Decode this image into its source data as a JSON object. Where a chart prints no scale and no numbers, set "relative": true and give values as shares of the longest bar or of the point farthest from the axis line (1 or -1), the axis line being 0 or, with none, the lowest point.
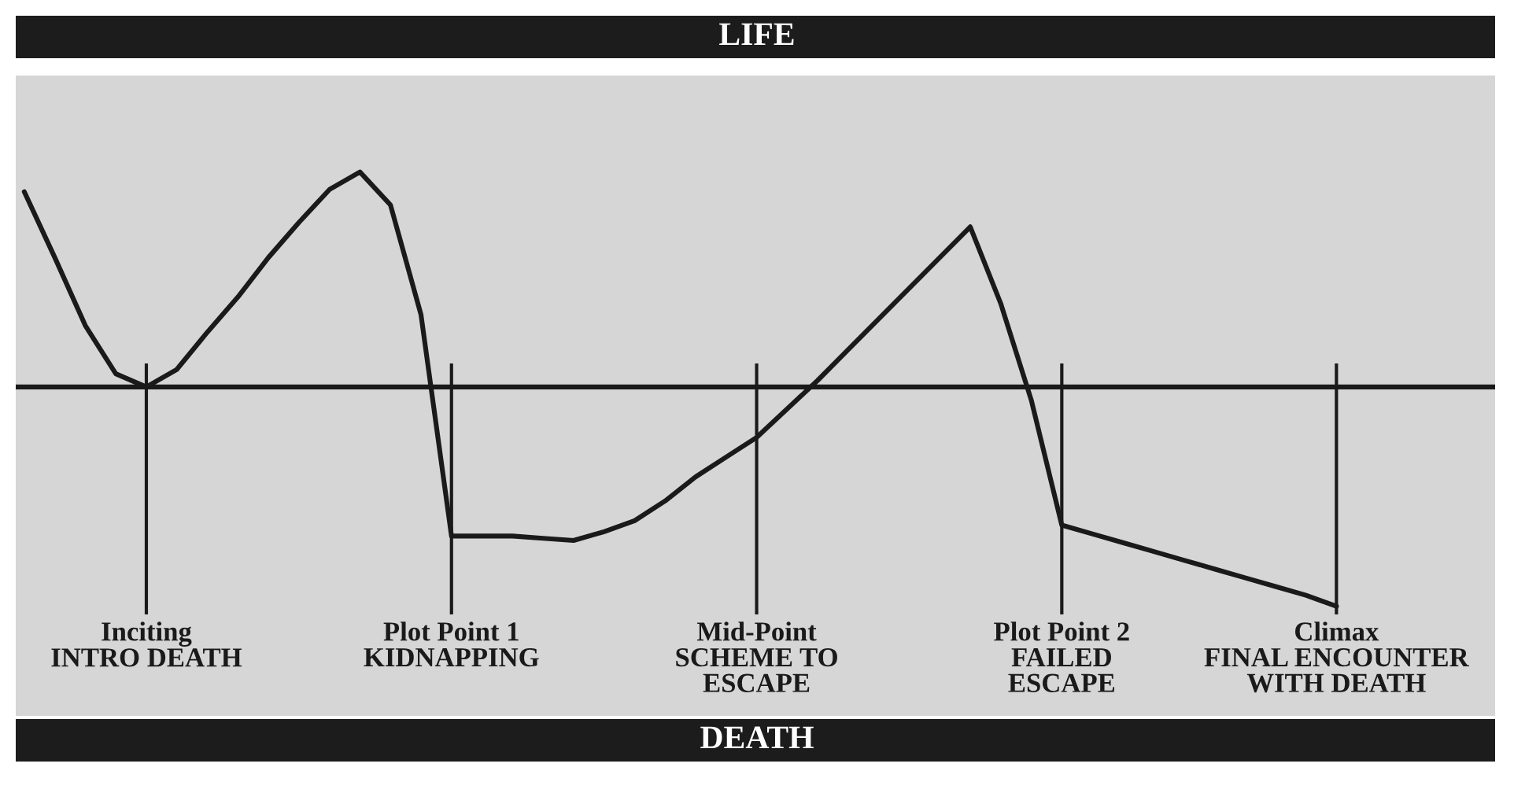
{
  "chart_data": {
    "type": "line",
    "relative": true,
    "tick_labels": "x",
    "categories": [
      null,
      null,
      null,
      null,
      "Inciting\nINTRO DEATH",
      null,
      null,
      null,
      null,
      null,
      null,
      null,
      null,
      null,
      "Plot Point 1\nKIDNAPPING",
      null,
      null,
      null,
      null,
      null,
      null,
      null,
      null,
      null,
      "Mid-Point\nSCHEME TO\nESCAPE",
      null,
      null,
      null,
      null,
      null,
      null,
      null,
      null,
      null,
      "Plot Point 2\nFAILED\nESCAPE",
      null,
      null,
      null,
      null,
      null,
      null,
      null,
      null,
      "Climax\nFINAL ENCOUNTER\nWITH DEATH"
    ],
    "series": [
      {
        "color": "#1a1a1a",
        "values": [
          0.89,
          0.59,
          0.28,
          0.06,
          0.0,
          0.08,
          0.25,
          0.41,
          0.59,
          0.75,
          0.9,
          0.98,
          0.83,
          0.33,
          -0.68,
          -0.68,
          -0.68,
          -0.69,
          -0.7,
          -0.66,
          -0.61,
          -0.52,
          -0.41,
          -0.32,
          -0.23,
          -0.1,
          0.03,
          0.17,
          0.31,
          0.45,
          0.59,
          0.73,
          0.38,
          -0.06,
          -0.63,
          -0.67,
          -0.71,
          -0.75,
          -0.79,
          -0.83,
          -0.87,
          -0.91,
          -0.95,
          -1.0
        ]
      }
    ],
    "annotations": [
      "LIFE",
      "DEATH"
    ]
  }
}
